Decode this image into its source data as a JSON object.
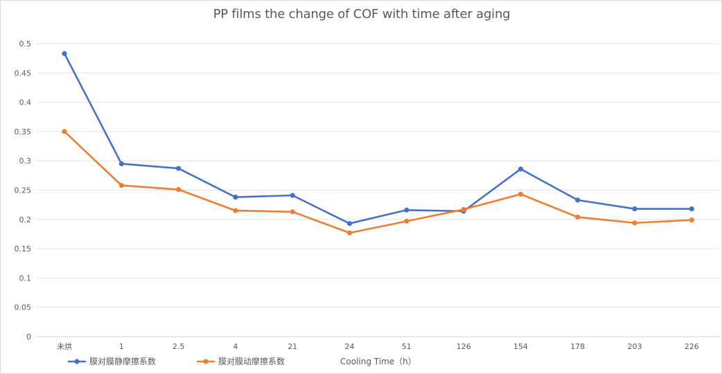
{
  "chart_data": {
    "type": "line",
    "title": "PP films  the change of COF with time after aging",
    "xlabel": "Cooling Time（h）",
    "ylabel": "",
    "categories": [
      "未烘",
      "1",
      "2.5",
      "4",
      "21",
      "24",
      "51",
      "126",
      "154",
      "178",
      "203",
      "226"
    ],
    "ylim": [
      0,
      0.5
    ],
    "yticks": [
      0,
      0.05,
      0.1,
      0.15,
      0.2,
      0.25,
      0.3,
      0.35,
      0.4,
      0.45,
      0.5
    ],
    "ytick_labels": [
      "0",
      "0.05",
      "0.1",
      "0.15",
      "0.2",
      "0.25",
      "0.3",
      "0.35",
      "0.4",
      "0.45",
      "0.5"
    ],
    "grid": true,
    "legend_position": "bottom-left",
    "series": [
      {
        "name": "膜对膜静摩擦系数",
        "color": "#4472c4",
        "values": [
          0.483,
          0.295,
          0.287,
          0.238,
          0.241,
          0.193,
          0.216,
          0.214,
          0.286,
          0.233,
          0.218,
          0.218
        ]
      },
      {
        "name": "膜对膜动摩擦系数",
        "color": "#ed7d31",
        "values": [
          0.35,
          0.258,
          0.251,
          0.215,
          0.213,
          0.177,
          0.197,
          0.217,
          0.243,
          0.204,
          0.194,
          0.199
        ]
      }
    ]
  }
}
